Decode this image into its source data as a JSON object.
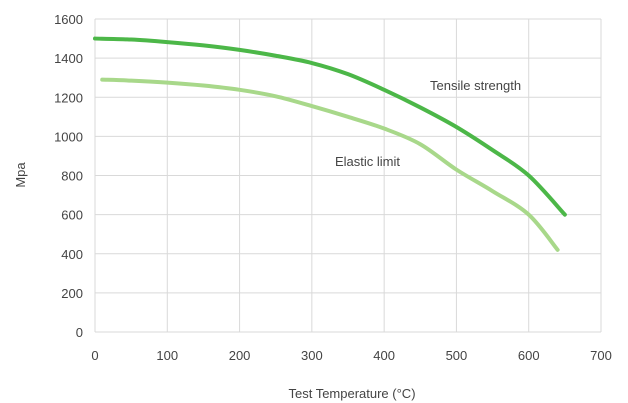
{
  "chart_data": {
    "type": "line",
    "title": "",
    "xlabel": "Test Temperature (°C)",
    "ylabel": "Mpa",
    "xlim": [
      0,
      700
    ],
    "ylim": [
      0,
      1600
    ],
    "x_ticks": [
      "0",
      "100",
      "200",
      "300",
      "400",
      "500",
      "600",
      "700"
    ],
    "y_ticks": [
      "0",
      "200",
      "400",
      "600",
      "800",
      "1000",
      "1200",
      "1400",
      "1600"
    ],
    "grid": true,
    "legend": "none",
    "series": [
      {
        "name": "Tensile strength",
        "color": "#4cb748",
        "x": [
          0,
          50,
          100,
          150,
          200,
          250,
          300,
          350,
          400,
          450,
          500,
          550,
          600,
          650
        ],
        "y": [
          1500,
          1495,
          1482,
          1465,
          1442,
          1412,
          1375,
          1318,
          1238,
          1148,
          1048,
          930,
          800,
          600
        ]
      },
      {
        "name": "Elastic limit",
        "color": "#a8d88a",
        "x": [
          10,
          50,
          100,
          150,
          200,
          250,
          300,
          350,
          400,
          450,
          500,
          550,
          600,
          640
        ],
        "y": [
          1290,
          1285,
          1275,
          1260,
          1238,
          1205,
          1155,
          1100,
          1040,
          960,
          830,
          720,
          600,
          420
        ]
      }
    ],
    "annotations": [
      "Tensile strength",
      "Elastic limit"
    ]
  }
}
